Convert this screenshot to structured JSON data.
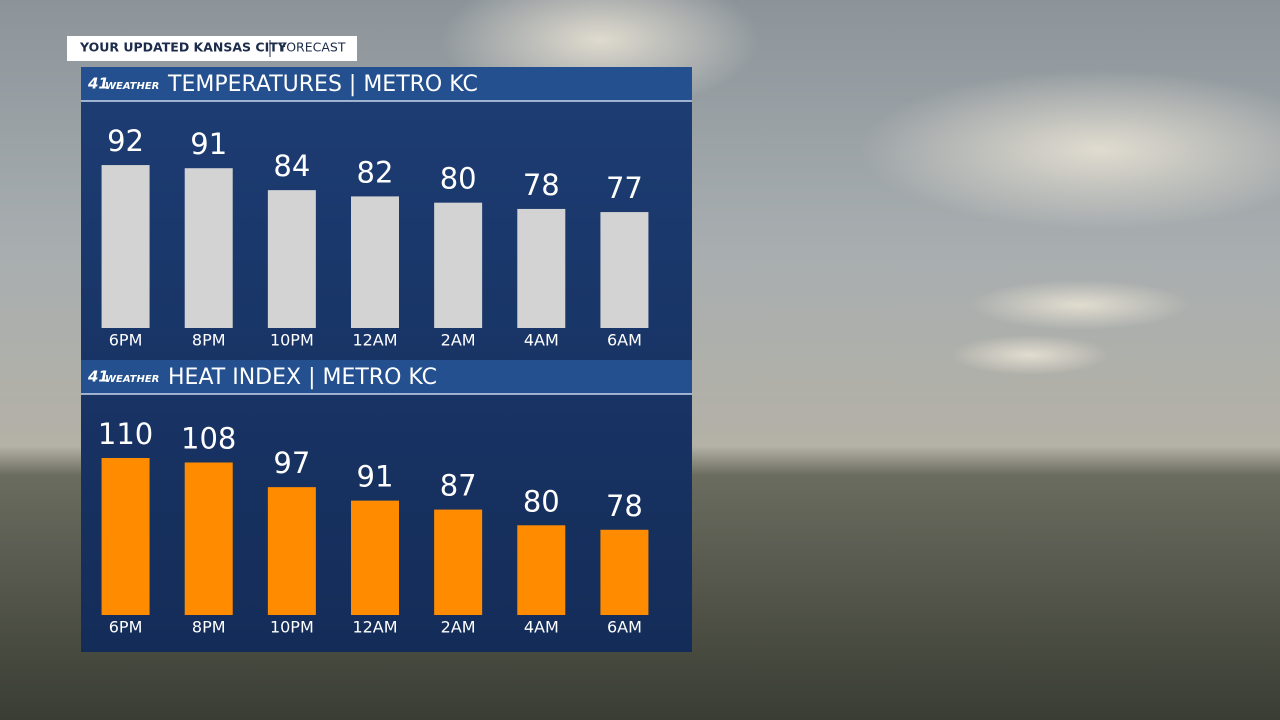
{
  "header": {
    "title": "YOUR UPDATED KANSAS CITY",
    "tag": "FORECAST"
  },
  "logo": {
    "number": "41",
    "text": "WEATHER"
  },
  "chart_data": [
    {
      "type": "bar",
      "title": "TEMPERATURES | METRO KC",
      "categories": [
        "6PM",
        "8PM",
        "10PM",
        "12AM",
        "2AM",
        "4AM",
        "6AM"
      ],
      "values": [
        92,
        91,
        84,
        82,
        80,
        78,
        77
      ],
      "color": "#d3d3d3",
      "ylim": [
        40,
        100
      ]
    },
    {
      "type": "bar",
      "title": "HEAT INDEX | METRO KC",
      "categories": [
        "6PM",
        "8PM",
        "10PM",
        "12AM",
        "2AM",
        "4AM",
        "6AM"
      ],
      "values": [
        110,
        108,
        97,
        91,
        87,
        80,
        78
      ],
      "color": "#ff8c00",
      "ylim": [
        40,
        110
      ]
    }
  ]
}
